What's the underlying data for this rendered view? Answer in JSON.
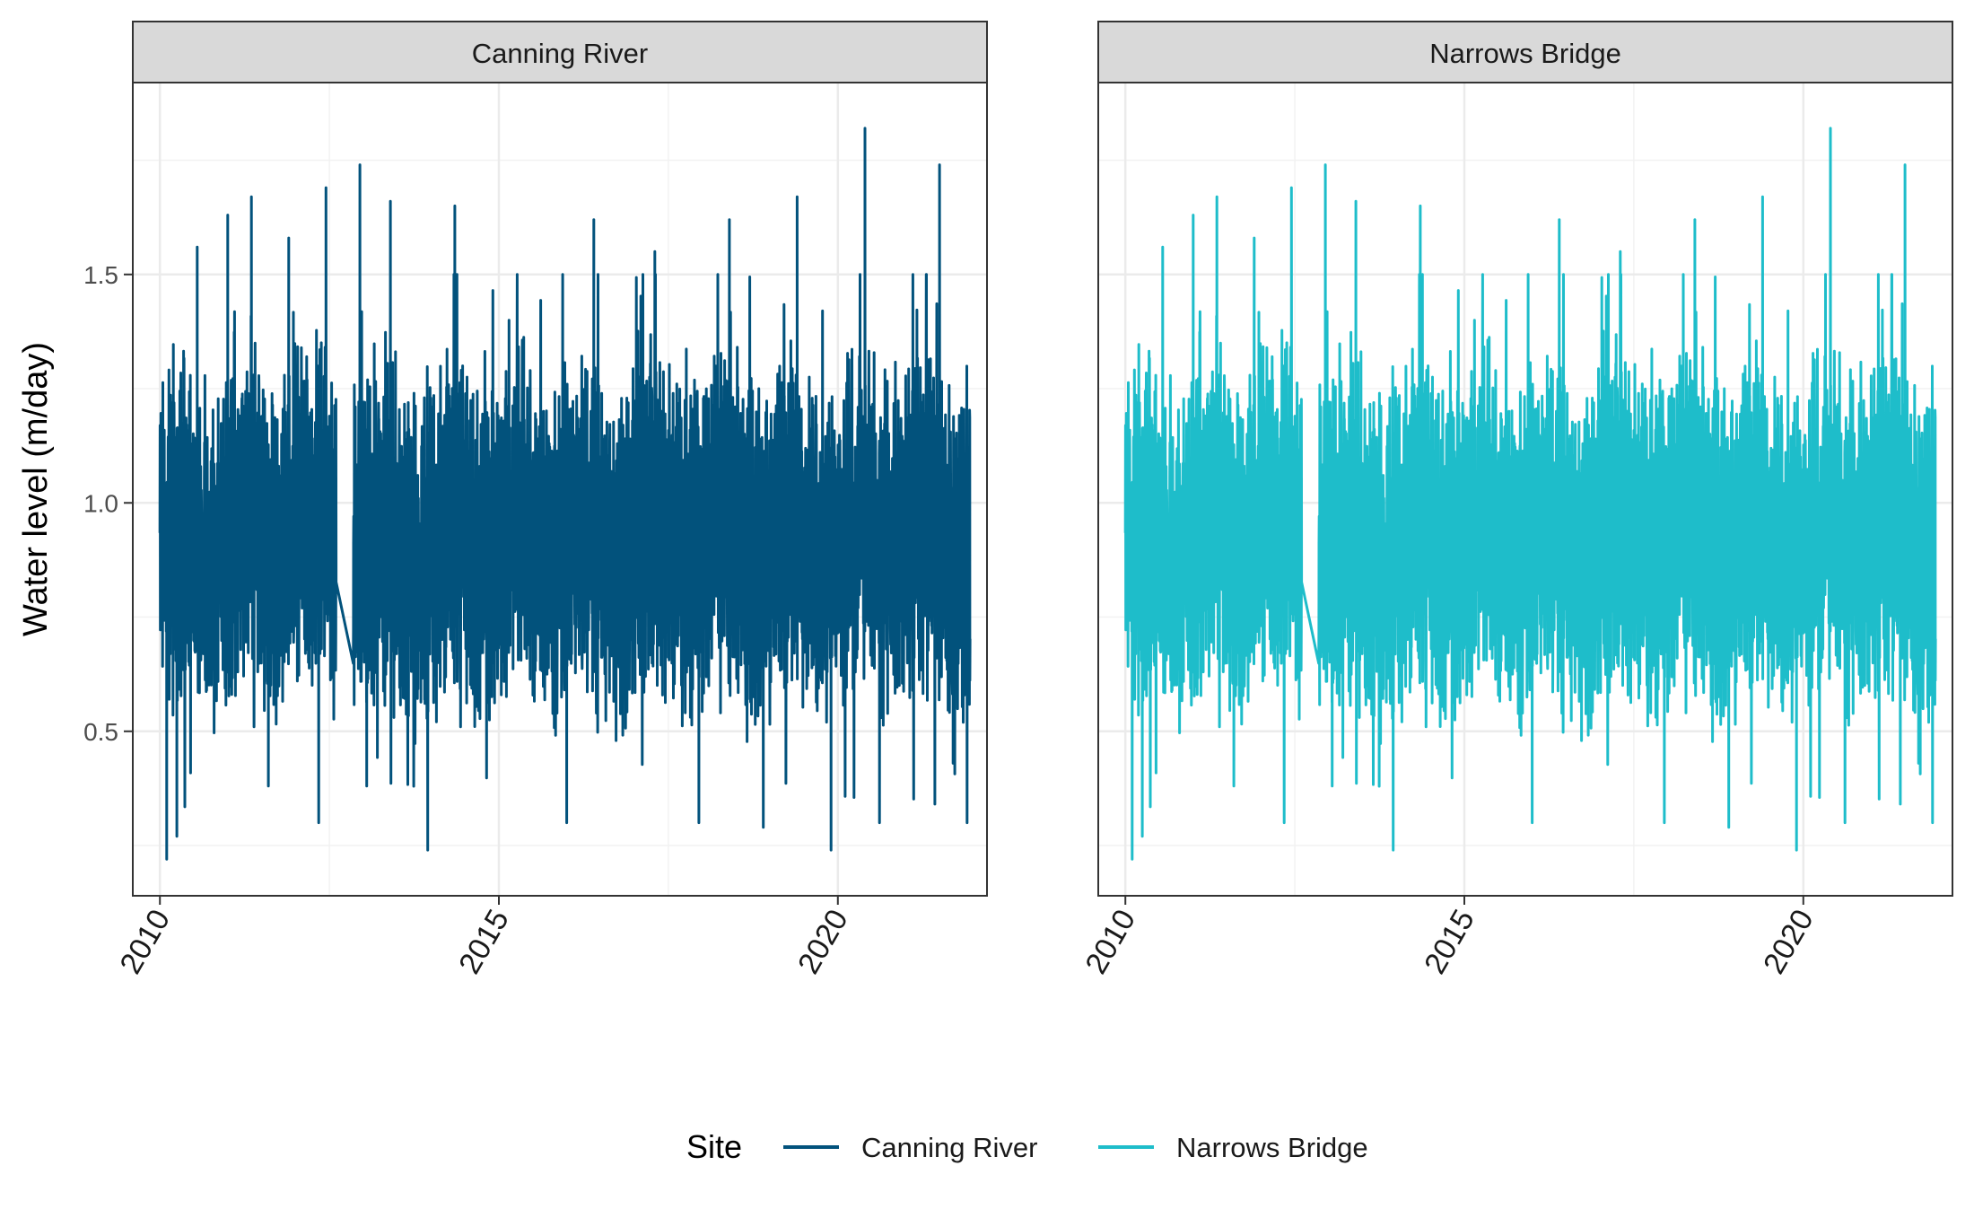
{
  "chart_data": {
    "type": "line",
    "ylabel": "Water level (m/day)",
    "xlim": [
      2009.6,
      2022.2
    ],
    "ylim": [
      0.14,
      1.92
    ],
    "y_ticks": [
      0.5,
      1.0,
      1.5
    ],
    "y_tick_labels": [
      "0.5",
      "1.0",
      "1.5"
    ],
    "x_ticks": [
      2010,
      2015,
      2020
    ],
    "x_tick_labels": [
      "2010",
      "2015",
      "2020"
    ],
    "grid": true,
    "legend": {
      "title": "Site",
      "position": "bottom",
      "entries": [
        {
          "label": "Canning River",
          "color": "#02527c"
        },
        {
          "label": "Narrows Bridge",
          "color": "#1ebdca"
        }
      ]
    },
    "panels": [
      {
        "title": "Canning River",
        "series": "Canning River",
        "color": "#02527c"
      },
      {
        "title": "Narrows Bridge",
        "series": "Narrows Bridge",
        "color": "#1ebdca"
      }
    ],
    "series_summary": {
      "x_start": 2010.0,
      "x_end": 2021.95,
      "data_gap": [
        2012.6,
        2012.85
      ],
      "typical_range": [
        0.55,
        1.3
      ],
      "min": 0.22,
      "max": 1.82,
      "peaks": [
        {
          "x": 2010.05,
          "y": 1.1
        },
        {
          "x": 2010.55,
          "y": 1.56
        },
        {
          "x": 2011.0,
          "y": 1.63
        },
        {
          "x": 2011.35,
          "y": 1.67
        },
        {
          "x": 2011.9,
          "y": 1.58
        },
        {
          "x": 2012.45,
          "y": 1.69
        },
        {
          "x": 2012.95,
          "y": 1.74
        },
        {
          "x": 2013.4,
          "y": 1.66
        },
        {
          "x": 2014.35,
          "y": 1.65
        },
        {
          "x": 2015.15,
          "y": 1.4
        },
        {
          "x": 2016.4,
          "y": 1.62
        },
        {
          "x": 2017.3,
          "y": 1.55
        },
        {
          "x": 2018.4,
          "y": 1.62
        },
        {
          "x": 2019.4,
          "y": 1.67
        },
        {
          "x": 2020.4,
          "y": 1.82
        },
        {
          "x": 2021.5,
          "y": 1.74
        }
      ],
      "troughs": [
        {
          "x": 2010.1,
          "y": 0.22
        },
        {
          "x": 2010.25,
          "y": 0.27
        },
        {
          "x": 2011.6,
          "y": 0.38
        },
        {
          "x": 2013.05,
          "y": 0.38
        },
        {
          "x": 2013.95,
          "y": 0.24
        },
        {
          "x": 2016.0,
          "y": 0.3
        },
        {
          "x": 2017.95,
          "y": 0.3
        },
        {
          "x": 2018.9,
          "y": 0.29
        },
        {
          "x": 2019.9,
          "y": 0.24
        },
        {
          "x": 2021.7,
          "y": 0.43
        }
      ]
    }
  }
}
